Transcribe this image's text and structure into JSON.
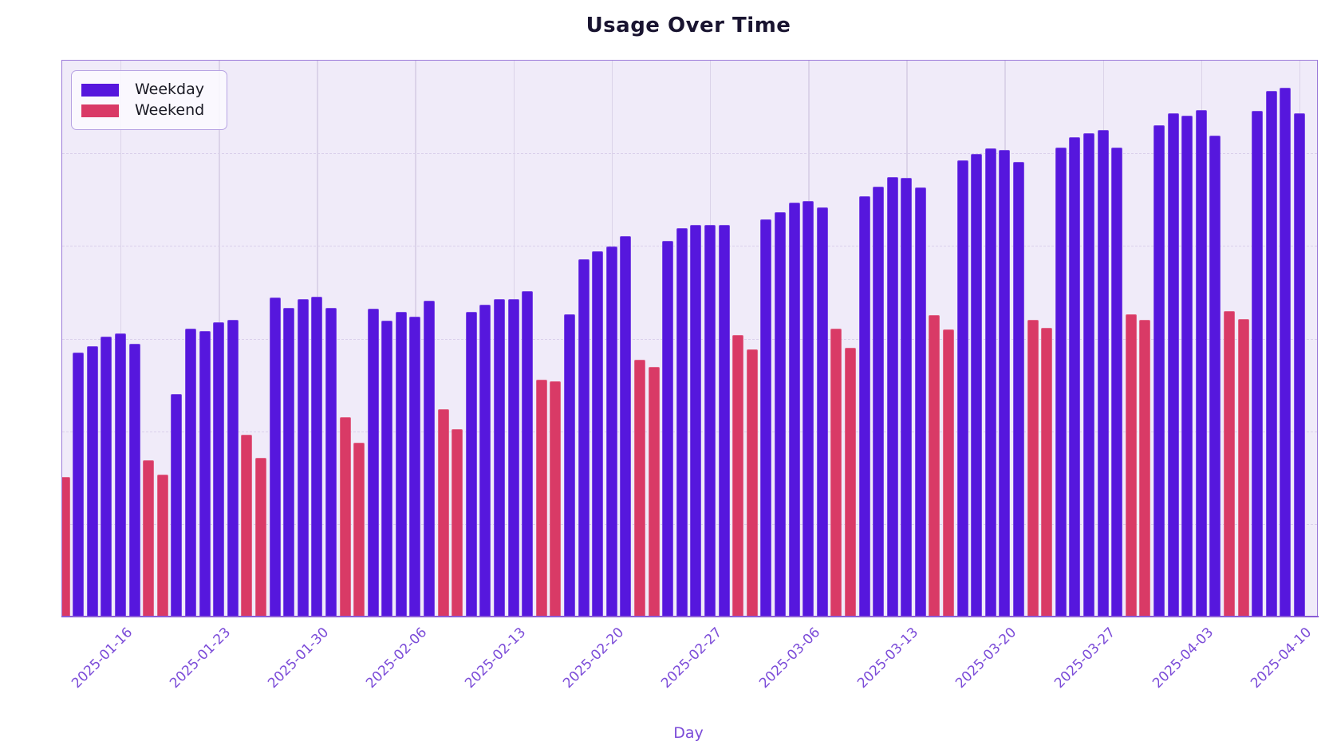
{
  "title": "Usage Over Time",
  "xlabel": "Day",
  "legend": [
    {
      "label": "Weekday",
      "color": "#5617dd"
    },
    {
      "label": "Weekend",
      "color": "#d93a66"
    }
  ],
  "colors": {
    "weekday_bar": "#5617dd",
    "weekend_bar": "#d93a66",
    "plot_background": "#f0ebf9",
    "figure_background": "#ffffff",
    "axis_spine": "#9b79d9",
    "x_axis_line": "#8a5cd6",
    "tick_label": "#7b4bd8",
    "title_text": "#191430",
    "vertical_gridline": "#dbd3e9"
  },
  "chart_data": {
    "type": "bar",
    "title": "Usage Over Time",
    "xlabel": "Day",
    "ylabel": "",
    "y_axis_labels_visible": false,
    "ylim": [
      0,
      120
    ],
    "y_gridlines": [
      20,
      40,
      60,
      80,
      100
    ],
    "grid": "vertical solid at weekly ticks, horizontal faint dashed",
    "legend_position": "upper left",
    "x_tick_labels": [
      "2025-01-16",
      "2025-01-23",
      "2025-01-30",
      "2025-02-06",
      "2025-02-13",
      "2025-02-20",
      "2025-02-27",
      "2025-03-06",
      "2025-03-13",
      "2025-03-20",
      "2025-03-27",
      "2025-04-03",
      "2025-04-10"
    ],
    "series": [
      {
        "name": "Weekday",
        "color": "#5617dd"
      },
      {
        "name": "Weekend",
        "color": "#d93a66"
      }
    ],
    "bars": [
      {
        "date": "2025-01-12",
        "value": 30.1,
        "series": "Weekend"
      },
      {
        "date": "2025-01-13",
        "value": 57.0,
        "series": "Weekday"
      },
      {
        "date": "2025-01-14",
        "value": 58.3,
        "series": "Weekday"
      },
      {
        "date": "2025-01-15",
        "value": 60.5,
        "series": "Weekday"
      },
      {
        "date": "2025-01-16",
        "value": 61.2,
        "series": "Weekday"
      },
      {
        "date": "2025-01-17",
        "value": 58.8,
        "series": "Weekday"
      },
      {
        "date": "2025-01-18",
        "value": 33.7,
        "series": "Weekend"
      },
      {
        "date": "2025-01-19",
        "value": 30.6,
        "series": "Weekend"
      },
      {
        "date": "2025-01-20",
        "value": 48.1,
        "series": "Weekday"
      },
      {
        "date": "2025-01-21",
        "value": 62.1,
        "series": "Weekday"
      },
      {
        "date": "2025-01-22",
        "value": 61.7,
        "series": "Weekday"
      },
      {
        "date": "2025-01-23",
        "value": 63.6,
        "series": "Weekday"
      },
      {
        "date": "2025-01-24",
        "value": 64.1,
        "series": "Weekday"
      },
      {
        "date": "2025-01-25",
        "value": 39.2,
        "series": "Weekend"
      },
      {
        "date": "2025-01-26",
        "value": 34.2,
        "series": "Weekend"
      },
      {
        "date": "2025-01-27",
        "value": 68.8,
        "series": "Weekday"
      },
      {
        "date": "2025-01-28",
        "value": 66.6,
        "series": "Weekday"
      },
      {
        "date": "2025-01-29",
        "value": 68.5,
        "series": "Weekday"
      },
      {
        "date": "2025-01-30",
        "value": 69.1,
        "series": "Weekday"
      },
      {
        "date": "2025-01-31",
        "value": 66.7,
        "series": "Weekday"
      },
      {
        "date": "2025-02-01",
        "value": 43.0,
        "series": "Weekend"
      },
      {
        "date": "2025-02-02",
        "value": 37.5,
        "series": "Weekend"
      },
      {
        "date": "2025-02-03",
        "value": 66.4,
        "series": "Weekday"
      },
      {
        "date": "2025-02-04",
        "value": 63.8,
        "series": "Weekday"
      },
      {
        "date": "2025-02-05",
        "value": 65.7,
        "series": "Weekday"
      },
      {
        "date": "2025-02-06",
        "value": 64.7,
        "series": "Weekday"
      },
      {
        "date": "2025-02-07",
        "value": 68.1,
        "series": "Weekday"
      },
      {
        "date": "2025-02-08",
        "value": 44.8,
        "series": "Weekend"
      },
      {
        "date": "2025-02-09",
        "value": 40.4,
        "series": "Weekend"
      },
      {
        "date": "2025-02-10",
        "value": 65.7,
        "series": "Weekday"
      },
      {
        "date": "2025-02-11",
        "value": 67.4,
        "series": "Weekday"
      },
      {
        "date": "2025-02-12",
        "value": 68.6,
        "series": "Weekday"
      },
      {
        "date": "2025-02-13",
        "value": 68.5,
        "series": "Weekday"
      },
      {
        "date": "2025-02-14",
        "value": 70.2,
        "series": "Weekday"
      },
      {
        "date": "2025-02-15",
        "value": 51.2,
        "series": "Weekend"
      },
      {
        "date": "2025-02-16",
        "value": 50.8,
        "series": "Weekend"
      },
      {
        "date": "2025-02-17",
        "value": 65.2,
        "series": "Weekday"
      },
      {
        "date": "2025-02-18",
        "value": 77.1,
        "series": "Weekday"
      },
      {
        "date": "2025-02-19",
        "value": 78.8,
        "series": "Weekday"
      },
      {
        "date": "2025-02-20",
        "value": 79.9,
        "series": "Weekday"
      },
      {
        "date": "2025-02-21",
        "value": 82.1,
        "series": "Weekday"
      },
      {
        "date": "2025-02-22",
        "value": 55.5,
        "series": "Weekend"
      },
      {
        "date": "2025-02-23",
        "value": 53.9,
        "series": "Weekend"
      },
      {
        "date": "2025-02-24",
        "value": 81.1,
        "series": "Weekday"
      },
      {
        "date": "2025-02-25",
        "value": 83.8,
        "series": "Weekday"
      },
      {
        "date": "2025-02-26",
        "value": 84.5,
        "series": "Weekday"
      },
      {
        "date": "2025-02-27",
        "value": 84.5,
        "series": "Weekday"
      },
      {
        "date": "2025-02-28",
        "value": 84.5,
        "series": "Weekday"
      },
      {
        "date": "2025-03-01",
        "value": 60.7,
        "series": "Weekend"
      },
      {
        "date": "2025-03-02",
        "value": 57.6,
        "series": "Weekend"
      },
      {
        "date": "2025-03-03",
        "value": 85.7,
        "series": "Weekday"
      },
      {
        "date": "2025-03-04",
        "value": 87.3,
        "series": "Weekday"
      },
      {
        "date": "2025-03-05",
        "value": 89.4,
        "series": "Weekday"
      },
      {
        "date": "2025-03-06",
        "value": 89.7,
        "series": "Weekday"
      },
      {
        "date": "2025-03-07",
        "value": 88.3,
        "series": "Weekday"
      },
      {
        "date": "2025-03-08",
        "value": 62.1,
        "series": "Weekend"
      },
      {
        "date": "2025-03-09",
        "value": 58.1,
        "series": "Weekend"
      },
      {
        "date": "2025-03-10",
        "value": 90.8,
        "series": "Weekday"
      },
      {
        "date": "2025-03-11",
        "value": 92.8,
        "series": "Weekday"
      },
      {
        "date": "2025-03-12",
        "value": 94.9,
        "series": "Weekday"
      },
      {
        "date": "2025-03-13",
        "value": 94.7,
        "series": "Weekday"
      },
      {
        "date": "2025-03-14",
        "value": 92.7,
        "series": "Weekday"
      },
      {
        "date": "2025-03-15",
        "value": 65.0,
        "series": "Weekend"
      },
      {
        "date": "2025-03-16",
        "value": 61.9,
        "series": "Weekend"
      },
      {
        "date": "2025-03-17",
        "value": 98.5,
        "series": "Weekday"
      },
      {
        "date": "2025-03-18",
        "value": 99.9,
        "series": "Weekday"
      },
      {
        "date": "2025-03-19",
        "value": 101.0,
        "series": "Weekday"
      },
      {
        "date": "2025-03-20",
        "value": 100.8,
        "series": "Weekday"
      },
      {
        "date": "2025-03-21",
        "value": 98.2,
        "series": "Weekday"
      },
      {
        "date": "2025-03-22",
        "value": 64.1,
        "series": "Weekend"
      },
      {
        "date": "2025-03-23",
        "value": 62.4,
        "series": "Weekend"
      },
      {
        "date": "2025-03-24",
        "value": 101.3,
        "series": "Weekday"
      },
      {
        "date": "2025-03-25",
        "value": 103.5,
        "series": "Weekday"
      },
      {
        "date": "2025-03-26",
        "value": 104.4,
        "series": "Weekday"
      },
      {
        "date": "2025-03-27",
        "value": 105.1,
        "series": "Weekday"
      },
      {
        "date": "2025-03-28",
        "value": 101.3,
        "series": "Weekday"
      },
      {
        "date": "2025-03-29",
        "value": 65.2,
        "series": "Weekend"
      },
      {
        "date": "2025-03-30",
        "value": 64.0,
        "series": "Weekend"
      },
      {
        "date": "2025-03-31",
        "value": 106.1,
        "series": "Weekday"
      },
      {
        "date": "2025-04-01",
        "value": 108.7,
        "series": "Weekday"
      },
      {
        "date": "2025-04-02",
        "value": 108.2,
        "series": "Weekday"
      },
      {
        "date": "2025-04-03",
        "value": 109.4,
        "series": "Weekday"
      },
      {
        "date": "2025-04-04",
        "value": 103.9,
        "series": "Weekday"
      },
      {
        "date": "2025-04-05",
        "value": 66.0,
        "series": "Weekend"
      },
      {
        "date": "2025-04-06",
        "value": 64.3,
        "series": "Weekend"
      },
      {
        "date": "2025-04-07",
        "value": 109.1,
        "series": "Weekday"
      },
      {
        "date": "2025-04-08",
        "value": 113.4,
        "series": "Weekday"
      },
      {
        "date": "2025-04-09",
        "value": 114.1,
        "series": "Weekday"
      },
      {
        "date": "2025-04-10",
        "value": 108.6,
        "series": "Weekday"
      }
    ]
  }
}
